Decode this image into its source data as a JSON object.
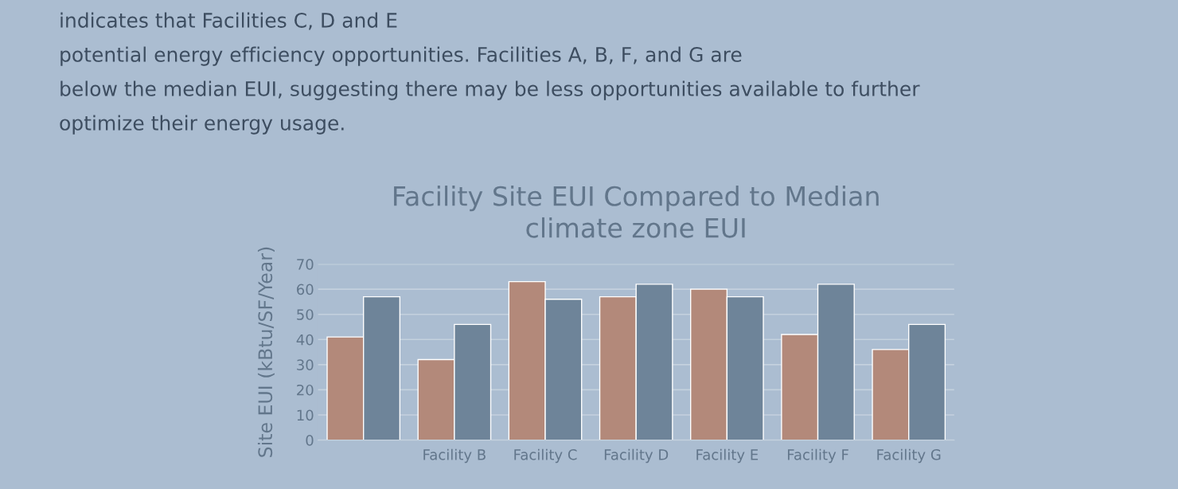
{
  "chart_data": {
    "type": "bar",
    "title": "Facility Site EUI Compared to Median\nclimate zone EUI",
    "annotations": [
      "indicates that Facilities C, D and E",
      "potential energy efficiency opportunities. Facilities A, B, F, and G are",
      "below the median EUI, suggesting there may be less opportunities available to further",
      "optimize their energy usage."
    ],
    "categories": [
      null,
      "Facility B",
      "Facility C",
      "Facility D",
      "Facility E",
      "Facility F",
      "Facility G"
    ],
    "series": [
      {
        "color": "#b3897a",
        "values": [
          41,
          32,
          63,
          57,
          60,
          42,
          36
        ]
      },
      {
        "color": "#6e8499",
        "values": [
          57,
          46,
          56,
          62,
          57,
          62,
          46
        ]
      }
    ],
    "ylabel": "Site EUI (kBtu/SF/Year)",
    "ylim": [
      0,
      70
    ],
    "yticks": [
      0,
      10,
      20,
      30,
      40,
      50,
      60,
      70
    ],
    "grid": "y"
  }
}
